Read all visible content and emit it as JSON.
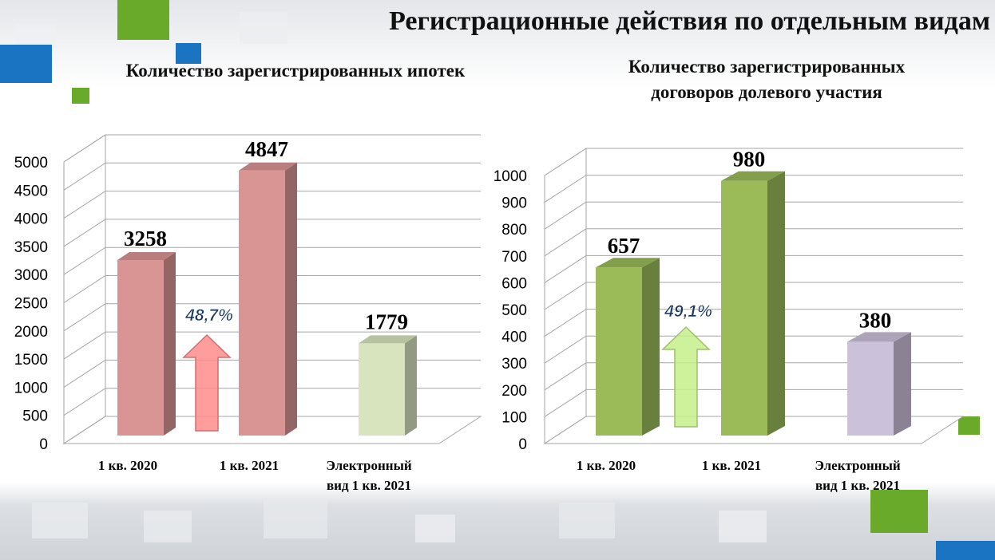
{
  "title": "Регистрационные действия по отдельным видам",
  "colors": {
    "green_accent": "#6aaa2a",
    "blue_accent": "#1a74c2"
  },
  "chart_data": [
    {
      "type": "bar",
      "title": "Количество зарегистрированных ипотек",
      "categories": [
        "1 кв. 2020",
        "1 кв. 2021",
        "Электронный вид 1 кв. 2021"
      ],
      "category_lines": [
        [
          "1 кв. 2020"
        ],
        [
          "1 кв. 2021"
        ],
        [
          "Электронный",
          "вид 1 кв. 2021"
        ]
      ],
      "values": [
        3258,
        4847,
        1779
      ],
      "value_labels": [
        "3258",
        "4847",
        "1779"
      ],
      "colors": [
        "#d99594",
        "#d99594",
        "#d7e4bd"
      ],
      "ylim": [
        0,
        5000
      ],
      "yticks": [
        0,
        500,
        1000,
        1500,
        2000,
        2500,
        3000,
        3500,
        4000,
        4500,
        5000
      ],
      "growth_label": "48,7%",
      "arrow_color": "#ff8c8c",
      "grid": true
    },
    {
      "type": "bar",
      "title": "Количество зарегистрированных договоров долевого участия",
      "title_lines": [
        "Количество зарегистрированных",
        "договоров долевого участия"
      ],
      "categories": [
        "1 кв. 2020",
        "1 кв. 2021",
        "Электронный вид 1 кв. 2021"
      ],
      "category_lines": [
        [
          "1 кв. 2020"
        ],
        [
          "1 кв. 2021"
        ],
        [
          "Электронный",
          "вид 1 кв. 2021"
        ]
      ],
      "values": [
        657,
        980,
        380
      ],
      "value_labels": [
        "657",
        "980",
        "380"
      ],
      "colors": [
        "#9bbb59",
        "#9bbb59",
        "#ccc1da"
      ],
      "ylim": [
        0,
        1000
      ],
      "yticks": [
        0,
        100,
        200,
        300,
        400,
        500,
        600,
        700,
        800,
        900,
        1000
      ],
      "growth_label": "49,1%",
      "arrow_color": "#c6f08a",
      "grid": true
    }
  ]
}
